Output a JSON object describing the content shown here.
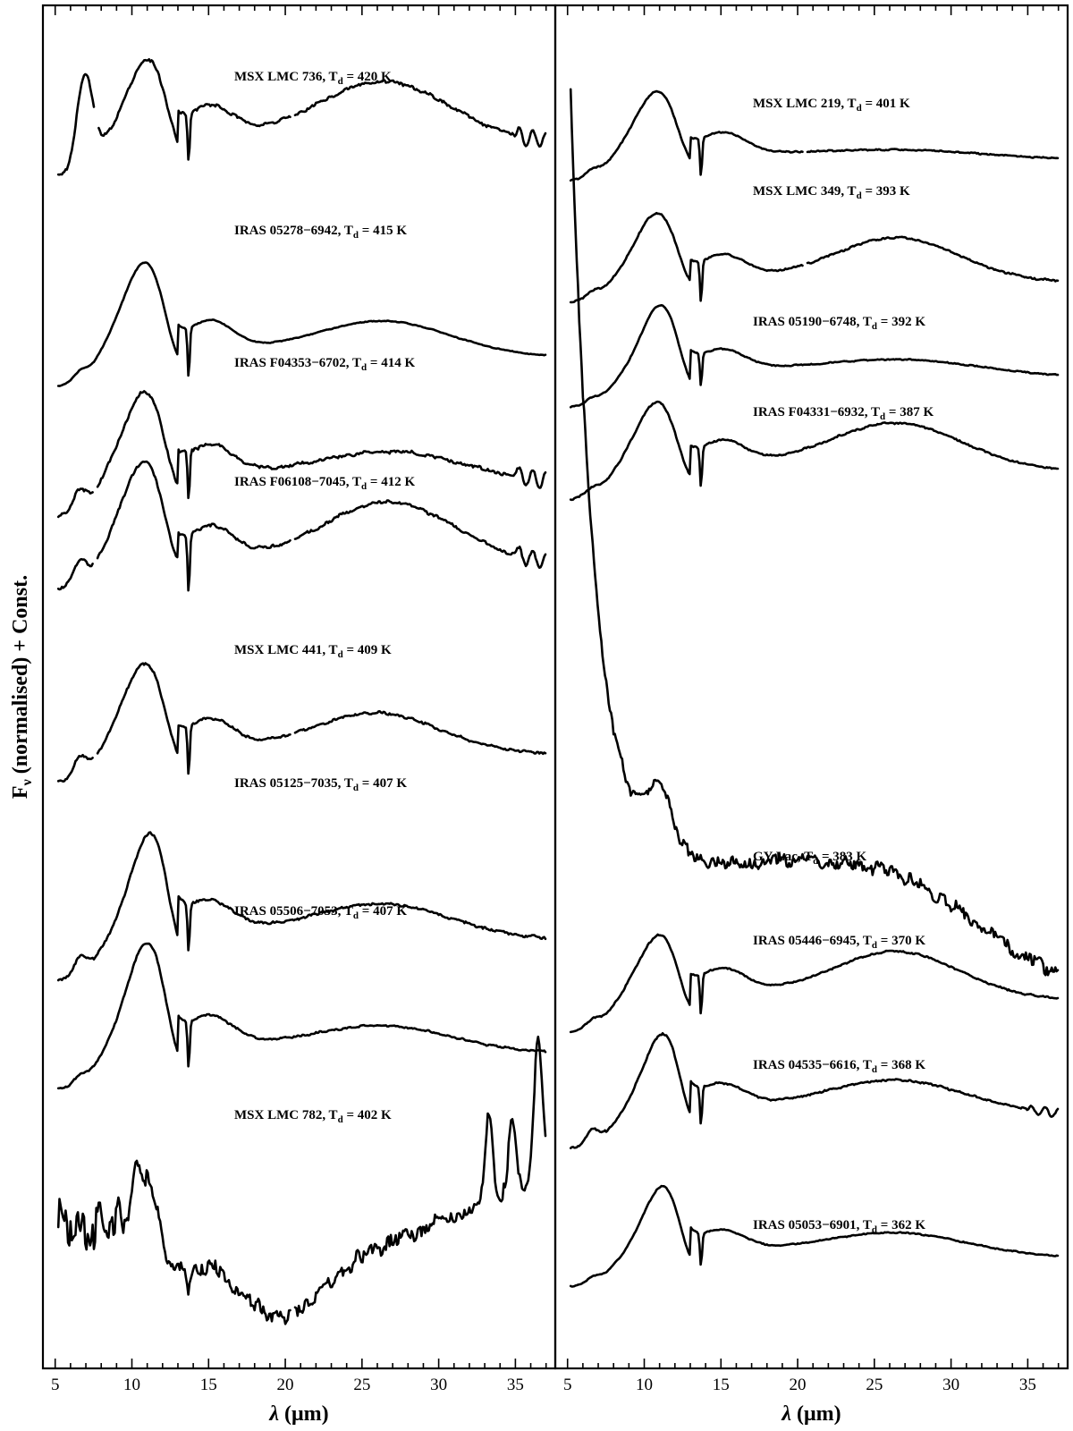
{
  "chart_data": {
    "type": "line",
    "title": "",
    "ylabel": "F_ν (normalised) + Const.",
    "ylabel_parts": {
      "main": "F",
      "sub": "ν",
      "rest": " (normalised) + Const."
    },
    "xlabel_parts": {
      "symbol": "λ",
      "unit": " (μm)"
    },
    "xlim": [
      4.2,
      37.6
    ],
    "x_ticks": [
      "5",
      "10",
      "15",
      "20",
      "25",
      "30",
      "35"
    ],
    "x_tick_values": [
      5,
      10,
      15,
      20,
      25,
      30,
      35
    ],
    "grid": false,
    "panels": [
      {
        "series": [
          {
            "object": "MSX LMC 736",
            "td": "420 K",
            "base": 0.86,
            "amp": 0.105,
            "fl": 0.55,
            "peak": 11.3,
            "broad": 0.42,
            "plateau": 0.32,
            "b2": 26.5,
            "b2amp": 0.4,
            "b2w": 4.2,
            "noise": 0.5,
            "gaps": [
              7.7,
              20.5
            ],
            "tail": true
          },
          {
            "object": "IRAS 05278−6942",
            "td": "415 K",
            "base": 0.705,
            "amp": 0.105,
            "fl": 0.0,
            "peak": 11.0,
            "broad": 0.5,
            "plateau": 0.3,
            "b2": 26.5,
            "b2amp": 0.22,
            "b2w": 4.2,
            "noise": 0.12,
            "gaps": [],
            "tail": false
          },
          {
            "object": "IRAS F04353−6702",
            "td": "414 K",
            "base": 0.61,
            "amp": 0.105,
            "fl": 0.0,
            "peak": 11.0,
            "broad": 0.5,
            "plateau": 0.34,
            "b2": 27.0,
            "b2amp": 0.18,
            "b2w": 4.5,
            "noise": 0.5,
            "gaps": [
              7.6
            ],
            "tail": true
          },
          {
            "object": "IRAS F06108−7045",
            "td": "412 K",
            "base": 0.555,
            "amp": 0.12,
            "fl": 0.0,
            "peak": 10.9,
            "broad": 0.3,
            "plateau": 0.22,
            "b2": 26.8,
            "b2amp": 0.36,
            "b2w": 4.2,
            "noise": 0.4,
            "gaps": [
              7.6,
              20.5
            ],
            "tail": true
          },
          {
            "object": "MSX LMC 441",
            "td": "409 K",
            "base": 0.415,
            "amp": 0.105,
            "fl": 0.0,
            "peak": 11.0,
            "broad": 0.42,
            "plateau": 0.28,
            "b2": 26.0,
            "b2amp": 0.26,
            "b2w": 4.0,
            "noise": 0.35,
            "gaps": [
              7.6,
              20.5
            ],
            "tail": false
          },
          {
            "object": "IRAS 05125−7035",
            "td": "407 K",
            "base": 0.27,
            "amp": 0.1,
            "fl": 0.0,
            "peak": 11.5,
            "broad": 0.62,
            "plateau": 0.42,
            "b2": 26.5,
            "b2amp": 0.22,
            "b2w": 4.2,
            "noise": 0.4,
            "gaps": [],
            "tail": false
          },
          {
            "object": "IRAS 05506−7053",
            "td": "407 K",
            "base": 0.19,
            "amp": 0.1,
            "fl": 0.0,
            "peak": 11.2,
            "broad": 0.55,
            "plateau": 0.38,
            "b2": 26.5,
            "b2amp": 0.16,
            "b2w": 4.2,
            "noise": 0.3,
            "gaps": [],
            "tail": false
          },
          {
            "object": "MSX LMC 782",
            "td": "402 K",
            "special": "msx782",
            "base": 0.035,
            "amp": 0.125,
            "gaps": [
              20.5
            ]
          }
        ]
      },
      {
        "series": [
          {
            "object": "MSX LMC 219",
            "td": "401 K",
            "base": 0.86,
            "amp": 0.08,
            "fl": 0.0,
            "peak": 11.0,
            "broad": 0.4,
            "plateau": 0.28,
            "b2": 27.0,
            "b2amp": 0.06,
            "b2w": 5.0,
            "noise": 0.25,
            "gaps": [
              20.5
            ],
            "tail": false
          },
          {
            "object": "MSX LMC 349",
            "td": "393 K",
            "base": 0.77,
            "amp": 0.085,
            "fl": 0.0,
            "peak": 11.0,
            "broad": 0.3,
            "plateau": 0.25,
            "b2": 26.5,
            "b2amp": 0.36,
            "b2w": 4.0,
            "noise": 0.3,
            "gaps": [
              20.5
            ],
            "tail": false
          },
          {
            "object": "IRAS 05190−6748",
            "td": "392 K",
            "base": 0.695,
            "amp": 0.07,
            "fl": 0.0,
            "peak": 11.3,
            "broad": 0.55,
            "plateau": 0.44,
            "b2": 27.0,
            "b2amp": 0.14,
            "b2w": 5.0,
            "noise": 0.25,
            "gaps": [],
            "tail": false
          },
          {
            "object": "IRAS F04331−6932",
            "td": "387 K",
            "base": 0.625,
            "amp": 0.085,
            "fl": 0.0,
            "peak": 11.0,
            "broad": 0.45,
            "plateau": 0.35,
            "b2": 26.5,
            "b2amp": 0.38,
            "b2w": 4.2,
            "noise": 0.3,
            "gaps": [],
            "tail": false
          },
          {
            "object": "GY Lac",
            "td": "383 K",
            "special": "gylac",
            "base": 0.34,
            "amp": 0.6,
            "gaps": []
          },
          {
            "object": "IRAS 05446−6945",
            "td": "370 K",
            "base": 0.235,
            "amp": 0.085,
            "fl": 0.0,
            "peak": 11.2,
            "broad": 0.45,
            "plateau": 0.38,
            "b2": 26.5,
            "b2amp": 0.38,
            "b2w": 4.0,
            "noise": 0.3,
            "gaps": [],
            "tail": false
          },
          {
            "object": "IRAS 04535−6616",
            "td": "368 K",
            "base": 0.15,
            "amp": 0.08,
            "fl": 0.0,
            "peak": 11.5,
            "broad": 0.55,
            "plateau": 0.42,
            "b2": 26.5,
            "b2amp": 0.28,
            "b2w": 4.5,
            "noise": 0.35,
            "gaps": [],
            "tail": true
          },
          {
            "object": "IRAS 05053−6901",
            "td": "362 K",
            "base": 0.05,
            "amp": 0.07,
            "fl": 0.0,
            "peak": 11.5,
            "broad": 0.55,
            "plateau": 0.42,
            "b2": 26.5,
            "b2amp": 0.22,
            "b2w": 4.5,
            "noise": 0.25,
            "gaps": [],
            "tail": false
          }
        ]
      }
    ],
    "labels": [
      {
        "object": "MSX LMC 736",
        "td": "420 K",
        "panel": 0
      },
      {
        "object": "IRAS 05278−6942",
        "td": "415 K",
        "panel": 0
      },
      {
        "object": "IRAS F04353−6702",
        "td": "414 K",
        "panel": 0
      },
      {
        "object": "IRAS F06108−7045",
        "td": "412 K",
        "panel": 0
      },
      {
        "object": "MSX LMC 441",
        "td": "409 K",
        "panel": 0
      },
      {
        "object": "IRAS 05125−7035",
        "td": "407 K",
        "panel": 0
      },
      {
        "object": "IRAS 05506−7053",
        "td": "407 K",
        "panel": 0
      },
      {
        "object": "MSX LMC 782",
        "td": "402 K",
        "panel": 0
      },
      {
        "object": "MSX LMC 219",
        "td": "401 K",
        "panel": 1
      },
      {
        "object": "MSX LMC 349",
        "td": "393 K",
        "panel": 1
      },
      {
        "object": "IRAS 05190−6748",
        "td": "392 K",
        "panel": 1
      },
      {
        "object": "IRAS F04331−6932",
        "td": "387 K",
        "panel": 1
      },
      {
        "object": "GY Lac",
        "td": "383 K",
        "panel": 1
      },
      {
        "object": "IRAS 05446−6945",
        "td": "370 K",
        "panel": 1
      },
      {
        "object": "IRAS 04535−6616",
        "td": "368 K",
        "panel": 1
      },
      {
        "object": "IRAS 05053−6901",
        "td": "362 K",
        "panel": 1
      }
    ]
  }
}
